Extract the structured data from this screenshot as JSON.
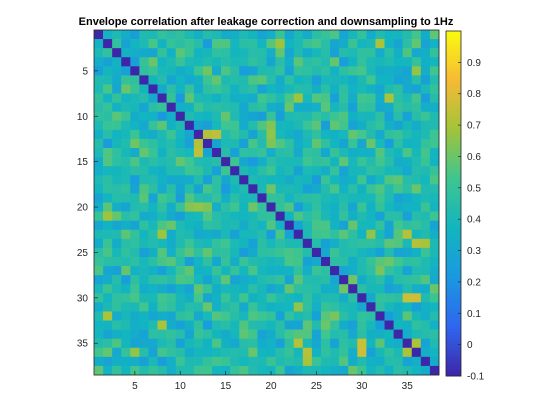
{
  "chart_data": {
    "type": "heatmap",
    "title": "Envelope correlation after leakage correction and downsampling to 1Hz",
    "n": 38,
    "colormap": "parula",
    "colors": [
      "#3e26a8",
      "#2f66f0",
      "#1a98e0",
      "#12b5c0",
      "#3ec590",
      "#a1c43a",
      "#f6ba35",
      "#f9fb0e"
    ],
    "clim": [
      -0.1,
      1.0
    ],
    "diagonal_value": -0.1,
    "baseline_mean": 0.42,
    "x_ticks": [
      5,
      10,
      15,
      20,
      25,
      30,
      35
    ],
    "y_ticks": [
      5,
      10,
      15,
      20,
      25,
      30,
      35
    ],
    "colorbar_ticks": [
      -0.1,
      0,
      0.1,
      0.2,
      0.3,
      0.4,
      0.5,
      0.6,
      0.7,
      0.8,
      0.9
    ],
    "highlights": [
      {
        "row": 12,
        "col": 13,
        "value": 0.72
      },
      {
        "row": 11,
        "col": 20,
        "value": 0.7
      },
      {
        "row": 14,
        "col": 12,
        "value": 0.74
      },
      {
        "row": 20,
        "col": 12,
        "value": 0.66
      },
      {
        "row": 20,
        "col": 11,
        "value": 0.64
      },
      {
        "row": 20,
        "col": 13,
        "value": 0.63
      },
      {
        "row": 30,
        "col": 35,
        "value": 0.76
      },
      {
        "row": 30,
        "col": 36,
        "value": 0.76
      },
      {
        "row": 23,
        "col": 35,
        "value": 0.72
      },
      {
        "row": 24,
        "col": 37,
        "value": 0.7
      },
      {
        "row": 32,
        "col": 2,
        "value": 0.7
      },
      {
        "row": 36,
        "col": 24,
        "value": 0.72
      },
      {
        "row": 36,
        "col": 35,
        "value": 0.7
      },
      {
        "row": 8,
        "col": 23,
        "value": 0.68
      },
      {
        "row": 23,
        "col": 31,
        "value": 0.66
      },
      {
        "row": 33,
        "col": 8,
        "value": 0.7
      },
      {
        "row": 36,
        "col": 5,
        "value": 0.66
      },
      {
        "row": 2,
        "col": 21,
        "value": 0.68
      }
    ]
  }
}
